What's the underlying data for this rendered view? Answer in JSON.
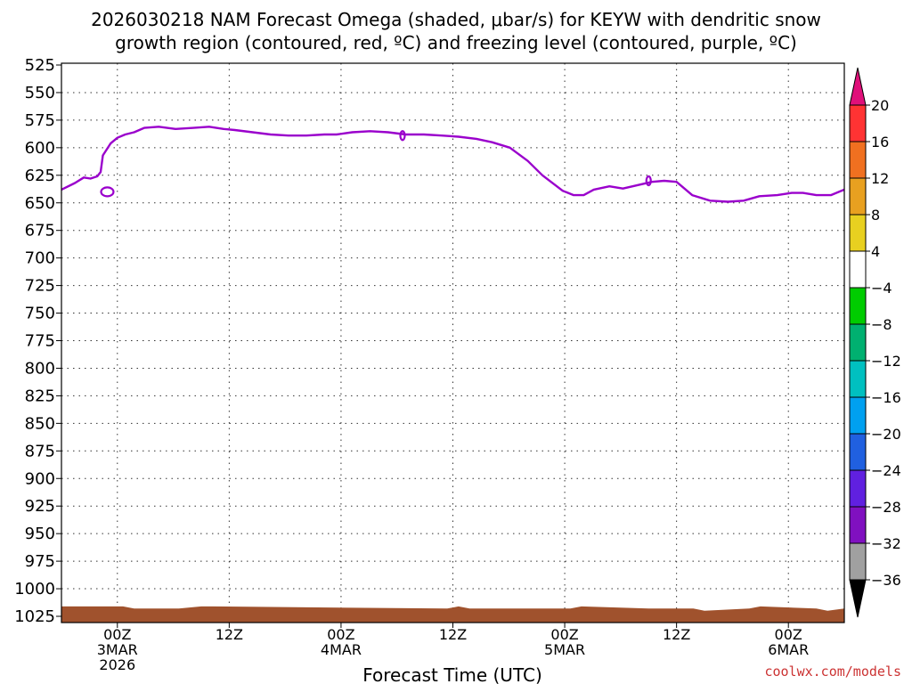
{
  "title_line1": "2026030218 NAM Forecast Omega (shaded, μbar/s) for KEYW with dendritic snow",
  "title_line2": "growth region (contoured, red, ºC) and freezing level (contoured, purple, ºC)",
  "watermark": "coolwx.com/models",
  "colors": {
    "freezing_level": "#9a00cc",
    "terrain": "#a0522d"
  },
  "chart_data": {
    "type": "line",
    "xlabel": "Forecast Time (UTC)",
    "ylabel": "",
    "x_range_hours": [
      -5,
      65
    ],
    "ylim": [
      1025,
      525
    ],
    "y_ticks": [
      525,
      550,
      575,
      600,
      625,
      650,
      675,
      700,
      725,
      750,
      775,
      800,
      825,
      850,
      875,
      900,
      925,
      950,
      975,
      1000,
      1025
    ],
    "x_ticks": [
      {
        "hour": 0,
        "lines": [
          "00Z",
          "3MAR",
          "2026"
        ]
      },
      {
        "hour": 10,
        "lines": [
          "12Z"
        ]
      },
      {
        "hour": 20,
        "lines": [
          "00Z",
          "4MAR"
        ]
      },
      {
        "hour": 30,
        "lines": [
          "12Z"
        ]
      },
      {
        "hour": 40,
        "lines": [
          "00Z",
          "5MAR"
        ]
      },
      {
        "hour": 50,
        "lines": [
          "12Z"
        ]
      },
      {
        "hour": 60,
        "lines": [
          "00Z",
          "6MAR"
        ]
      }
    ],
    "grid": true,
    "freezing_level": {
      "x": [
        -5,
        -3.8,
        -3,
        -2.4,
        -1.8,
        -1.5,
        -1.3,
        -0.6,
        0,
        0.7,
        1.5,
        2.4,
        3.7,
        5.2,
        6.8,
        8.2,
        9.5,
        10.5,
        12.1,
        13.7,
        15.3,
        16.9,
        18.5,
        19.6,
        21,
        22.6,
        24.2,
        25.8,
        27.4,
        29,
        30.5,
        32.1,
        33.5,
        35.1,
        36.7,
        38,
        39.8,
        40.8,
        41.7,
        42.6,
        44.0,
        45.2,
        46.5,
        47.8,
        48.9,
        50.0,
        51.4,
        53,
        54.6,
        56,
        57.4,
        59,
        60.3,
        61.3,
        62.5,
        63.8,
        65
      ],
      "y": [
        638,
        632,
        627,
        628,
        626,
        622,
        607,
        596,
        591,
        588,
        586,
        582,
        581,
        583,
        582,
        581,
        583,
        584,
        586,
        588,
        589,
        589,
        588,
        588,
        586,
        585,
        586,
        588,
        588,
        589,
        590,
        592,
        595,
        600,
        612,
        625,
        639,
        643,
        643,
        638,
        635,
        637,
        634,
        631,
        630,
        631,
        643,
        648,
        649,
        648,
        644,
        643,
        641,
        641,
        643,
        643,
        638
      ]
    },
    "freezing_level_loops": [
      {
        "x": -0.9,
        "y": 640,
        "rx": 7,
        "ry": 5
      },
      {
        "x": 25.5,
        "y": 589,
        "rx": 2.5,
        "ry": 5
      },
      {
        "x": 47.5,
        "y": 630,
        "rx": 2.5,
        "ry": 5
      }
    ],
    "terrain_top": {
      "x": [
        -5,
        0.5,
        1.5,
        5.5,
        7.5,
        8.5,
        29.5,
        30.5,
        31.5,
        40.5,
        41.5,
        47.5,
        51.5,
        52.5,
        56.5,
        57.5,
        62.5,
        63.5,
        65
      ],
      "y": [
        1016,
        1016,
        1018,
        1018,
        1016,
        1016,
        1018,
        1016,
        1018,
        1018,
        1016,
        1018,
        1018,
        1020,
        1018,
        1016,
        1018,
        1020,
        1018
      ]
    },
    "colorbar": {
      "labels": [
        "20",
        "16",
        "12",
        "8",
        "4",
        "−4",
        "−8",
        "−12",
        "−16",
        "−20",
        "−24",
        "−28",
        "−32",
        "−36"
      ],
      "colors": [
        "#ff3333",
        "#f07020",
        "#e8a020",
        "#e8d020",
        "#ffffff",
        "#00cc00",
        "#00b070",
        "#00c0c0",
        "#00a0f0",
        "#2060e0",
        "#6020e0",
        "#8010c0",
        "#a0a0a0"
      ],
      "top_color": "#e0107a",
      "bottom_color": "#000000"
    }
  }
}
